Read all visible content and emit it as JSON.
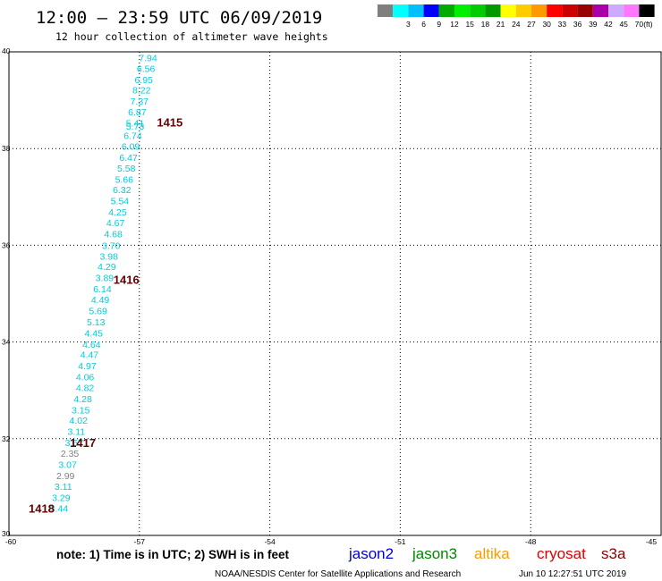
{
  "header": {
    "title": "12:00 — 23:59 UTC 06/09/2019",
    "subtitle": "12 hour collection of altimeter wave heights"
  },
  "color_scale": {
    "unit_label": "(ft)",
    "bins": [
      {
        "label": "",
        "color": "#7f7f7f"
      },
      {
        "label": "3",
        "color": "#00ffff"
      },
      {
        "label": "6",
        "color": "#00bfff"
      },
      {
        "label": "9",
        "color": "#0000ff"
      },
      {
        "label": "12",
        "color": "#00aa00"
      },
      {
        "label": "15",
        "color": "#00ee00"
      },
      {
        "label": "18",
        "color": "#00cc00"
      },
      {
        "label": "21",
        "color": "#009900"
      },
      {
        "label": "24",
        "color": "#ffff00"
      },
      {
        "label": "27",
        "color": "#ffcc00"
      },
      {
        "label": "30",
        "color": "#ff9900"
      },
      {
        "label": "33",
        "color": "#ff0000"
      },
      {
        "label": "36",
        "color": "#cc0000"
      },
      {
        "label": "39",
        "color": "#990000"
      },
      {
        "label": "42",
        "color": "#aa00aa"
      },
      {
        "label": "45",
        "color": "#ccaaff"
      },
      {
        "label": "70",
        "color": "#ff77ff"
      },
      {
        "label": "",
        "color": "#000000"
      }
    ]
  },
  "chart_data": {
    "type": "scatter",
    "title": "12:00 — 23:59 UTC 06/09/2019",
    "subtitle": "12 hour collection of altimeter wave heights",
    "xlim": [
      -60,
      -45
    ],
    "ylim": [
      30,
      40
    ],
    "x_ticks": [
      "-60",
      "-57",
      "-54",
      "-51",
      "-48",
      "-45"
    ],
    "x_tick_values": [
      -60,
      -57,
      -54,
      -51,
      -48,
      -45
    ],
    "y_ticks": [
      "30",
      "32",
      "34",
      "36",
      "38",
      "40"
    ],
    "y_tick_values": [
      30,
      32,
      34,
      36,
      38,
      40
    ],
    "grid": true,
    "points": [
      {
        "lon": -56.8,
        "lat": 39.88,
        "label": "7.94",
        "color": "#00ccdd"
      },
      {
        "lon": -56.85,
        "lat": 39.66,
        "label": "6.56",
        "color": "#00ccdd"
      },
      {
        "lon": -56.9,
        "lat": 39.43,
        "label": "6.95",
        "color": "#00ccdd"
      },
      {
        "lon": -56.95,
        "lat": 39.21,
        "label": "8.22",
        "color": "#00ccdd"
      },
      {
        "lon": -57.0,
        "lat": 38.98,
        "label": "7.37",
        "color": "#00ccdd"
      },
      {
        "lon": -57.05,
        "lat": 38.76,
        "label": "6.87",
        "color": "#00ccdd"
      },
      {
        "lon": -57.1,
        "lat": 38.53,
        "label": "5.41",
        "color": "#00ccdd"
      },
      {
        "lon": -57.1,
        "lat": 38.47,
        "label": "5.73",
        "color": "#00ccdd"
      },
      {
        "lon": -57.15,
        "lat": 38.27,
        "label": "6.74",
        "color": "#00ccdd"
      },
      {
        "lon": -57.2,
        "lat": 38.05,
        "label": "6.09",
        "color": "#00ccdd"
      },
      {
        "lon": -57.25,
        "lat": 37.82,
        "label": "6.47",
        "color": "#00ccdd"
      },
      {
        "lon": -57.3,
        "lat": 37.6,
        "label": "5.58",
        "color": "#00ccdd"
      },
      {
        "lon": -57.35,
        "lat": 37.37,
        "label": "5.66",
        "color": "#00ccdd"
      },
      {
        "lon": -57.4,
        "lat": 37.15,
        "label": "6.32",
        "color": "#00ccdd"
      },
      {
        "lon": -57.45,
        "lat": 36.92,
        "label": "5.54",
        "color": "#00ccdd"
      },
      {
        "lon": -57.5,
        "lat": 36.69,
        "label": "4.25",
        "color": "#00ccdd"
      },
      {
        "lon": -57.55,
        "lat": 36.47,
        "label": "4.67",
        "color": "#00ccdd"
      },
      {
        "lon": -57.6,
        "lat": 36.24,
        "label": "4.68",
        "color": "#00ccdd"
      },
      {
        "lon": -57.65,
        "lat": 36.0,
        "label": "3.70",
        "color": "#00ccdd"
      },
      {
        "lon": -57.7,
        "lat": 35.78,
        "label": "3.98",
        "color": "#00ccdd"
      },
      {
        "lon": -57.75,
        "lat": 35.56,
        "label": "4.29",
        "color": "#00ccdd"
      },
      {
        "lon": -57.8,
        "lat": 35.33,
        "label": "3.89",
        "color": "#00ccdd"
      },
      {
        "lon": -57.85,
        "lat": 35.1,
        "label": "6.14",
        "color": "#00ccdd"
      },
      {
        "lon": -57.9,
        "lat": 34.88,
        "label": "4.49",
        "color": "#00ccdd"
      },
      {
        "lon": -57.95,
        "lat": 34.65,
        "label": "5.69",
        "color": "#00ccdd"
      },
      {
        "lon": -58.0,
        "lat": 34.42,
        "label": "5.13",
        "color": "#00ccdd"
      },
      {
        "lon": -58.05,
        "lat": 34.19,
        "label": "4.45",
        "color": "#00ccdd"
      },
      {
        "lon": -58.1,
        "lat": 33.96,
        "label": "4.64",
        "color": "#00ccdd"
      },
      {
        "lon": -58.15,
        "lat": 33.74,
        "label": "4.47",
        "color": "#00ccdd"
      },
      {
        "lon": -58.2,
        "lat": 33.51,
        "label": "4.97",
        "color": "#00ccdd"
      },
      {
        "lon": -58.25,
        "lat": 33.28,
        "label": "4.06",
        "color": "#00ccdd"
      },
      {
        "lon": -58.25,
        "lat": 33.06,
        "label": "4.82",
        "color": "#00ccdd"
      },
      {
        "lon": -58.3,
        "lat": 32.83,
        "label": "4.28",
        "color": "#00ccdd"
      },
      {
        "lon": -58.35,
        "lat": 32.6,
        "label": "3.15",
        "color": "#00ccdd"
      },
      {
        "lon": -58.4,
        "lat": 32.38,
        "label": "4.02",
        "color": "#00ccdd"
      },
      {
        "lon": -58.45,
        "lat": 32.15,
        "label": "3.11",
        "color": "#00ccdd"
      },
      {
        "lon": -58.5,
        "lat": 31.92,
        "label": "3.57",
        "color": "#00ccdd"
      },
      {
        "lon": -58.6,
        "lat": 31.7,
        "label": "2.35",
        "color": "#808080"
      },
      {
        "lon": -58.65,
        "lat": 31.47,
        "label": "3.07",
        "color": "#00ccdd"
      },
      {
        "lon": -58.7,
        "lat": 31.24,
        "label": "2.99",
        "color": "#808080"
      },
      {
        "lon": -58.75,
        "lat": 31.02,
        "label": "3.11",
        "color": "#00ccdd"
      },
      {
        "lon": -58.8,
        "lat": 30.79,
        "label": "3.29",
        "color": "#00ccdd"
      },
      {
        "lon": -58.85,
        "lat": 30.56,
        "label": "3.44",
        "color": "#00ccdd"
      }
    ],
    "time_labels": [
      {
        "lon": -56.3,
        "lat": 38.55,
        "label": "1415"
      },
      {
        "lon": -57.3,
        "lat": 35.3,
        "label": "1416"
      },
      {
        "lon": -58.3,
        "lat": 31.92,
        "label": "1417"
      },
      {
        "lon": -59.25,
        "lat": 30.56,
        "label": "1418"
      }
    ],
    "time_label_color": "#660000"
  },
  "legend": {
    "note": "note: 1) Time is in UTC; 2) SWH is in feet",
    "satellites": [
      {
        "name": "jason2",
        "color": "#0000cc"
      },
      {
        "name": "jason3",
        "color": "#008800"
      },
      {
        "name": "altika",
        "color": "#ff9900"
      },
      {
        "name": "cryosat",
        "color": "#dd0000"
      },
      {
        "name": "s3a",
        "color": "#880000"
      }
    ]
  },
  "footer": {
    "credit": "NOAA/NESDIS Center for Satellite Applications and Research",
    "timestamp": "Jun 10 12:27:51 UTC 2019"
  }
}
